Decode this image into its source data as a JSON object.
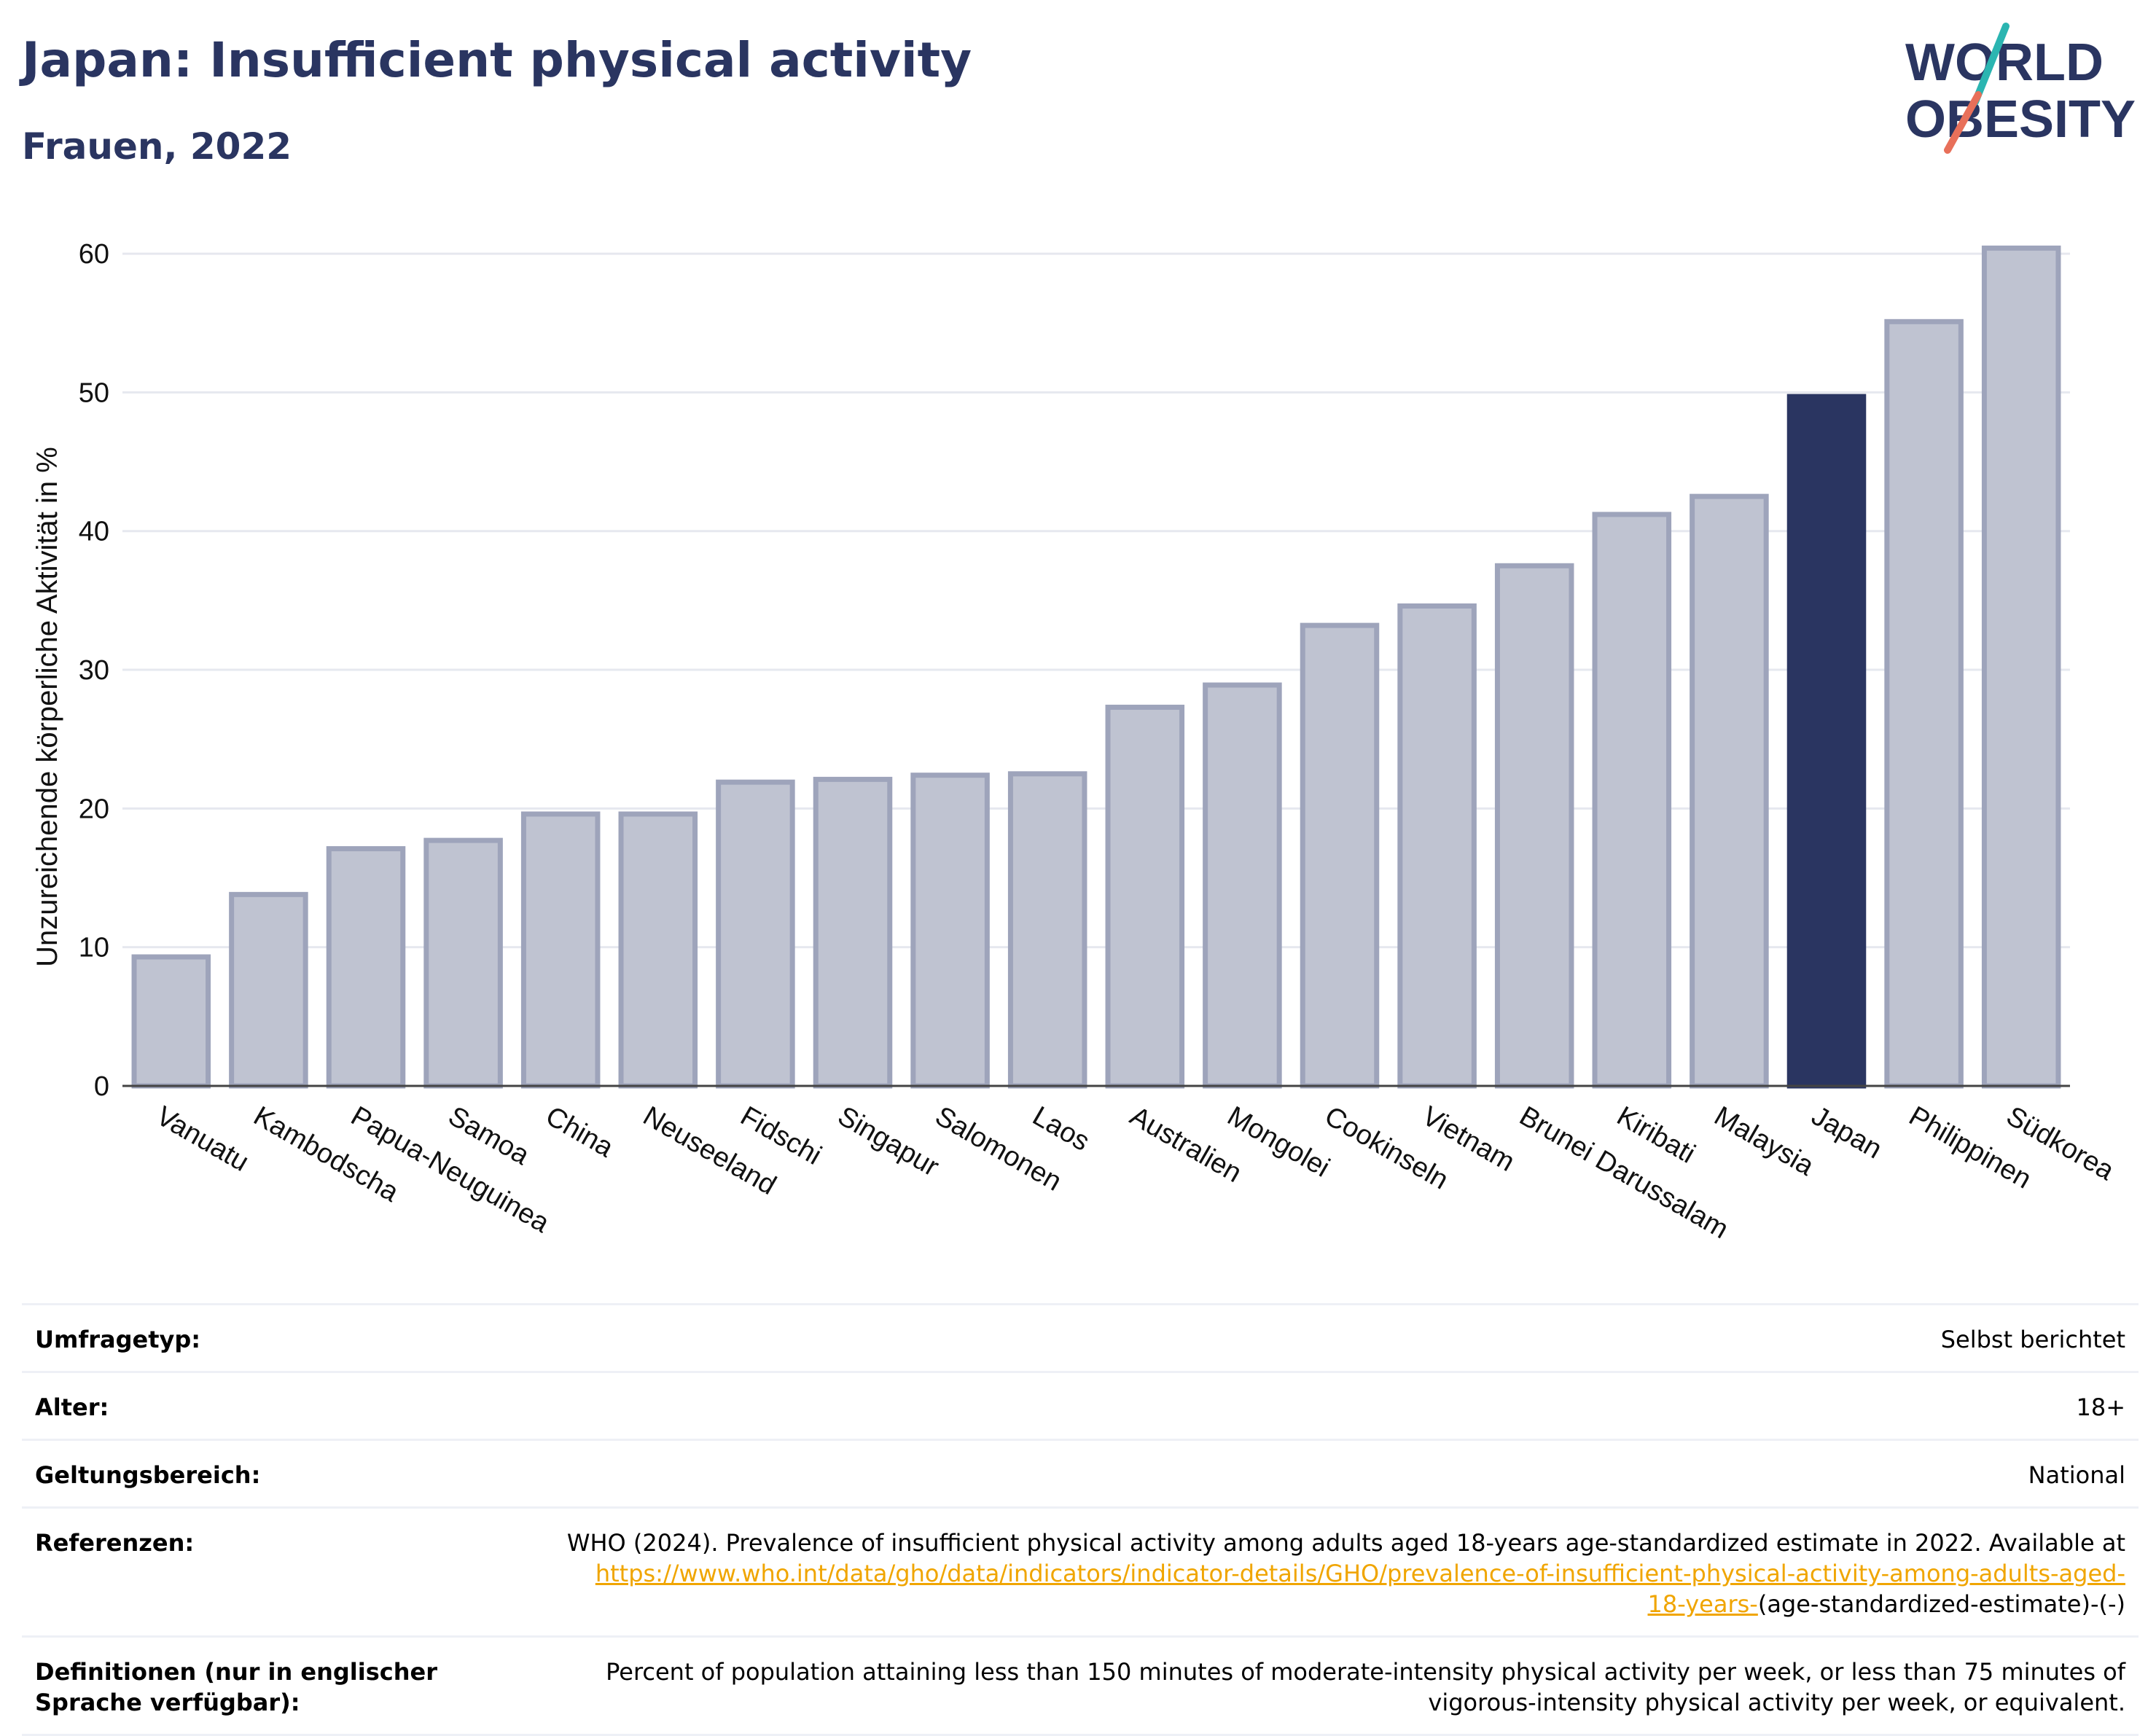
{
  "header": {
    "title": "Japan: Insufficient physical activity",
    "subtitle": "Frauen, 2022"
  },
  "logo": {
    "line1": "WORLD",
    "line2": "OBESITY",
    "brand_color": "#2a3561",
    "accent_teal": "#2bb5b1",
    "accent_coral": "#e8705a"
  },
  "chart_data": {
    "type": "bar",
    "ylabel": "Unzureichende körperliche Aktivität in %",
    "xlabel": "",
    "ylim": [
      0,
      62
    ],
    "yticks": [
      0,
      10,
      20,
      30,
      40,
      50,
      60
    ],
    "grid": true,
    "categories": [
      "Vanuatu",
      "Kambodscha",
      "Papua-Neuguinea",
      "Samoa",
      "China",
      "Neuseeland",
      "Fidschi",
      "Singapur",
      "Salomonen",
      "Laos",
      "Australien",
      "Mongolei",
      "Cookinseln",
      "Vietnam",
      "Brunei Darussalam",
      "Kiribati",
      "Malaysia",
      "Japan",
      "Philippinen",
      "Südkorea"
    ],
    "values": [
      9.3,
      13.8,
      17.1,
      17.7,
      19.6,
      19.6,
      21.9,
      22.1,
      22.4,
      22.5,
      27.3,
      28.9,
      33.2,
      34.6,
      37.5,
      41.2,
      42.5,
      49.7,
      55.1,
      60.4
    ],
    "highlight": "Japan",
    "bar_color": "#bfc3d1",
    "bar_border_color": "#9ea4bb",
    "highlight_color": "#2a3561"
  },
  "info": {
    "rows": [
      {
        "label": "Umfragetyp:",
        "value": "Selbst berichtet"
      },
      {
        "label": "Alter:",
        "value": "18+"
      },
      {
        "label": "Geltungsbereich:",
        "value": "National"
      }
    ],
    "references": {
      "label": "Referenzen:",
      "text": "WHO (2024). Prevalence of insufficient physical activity among adults aged 18-years age-standardized estimate in 2022. Available at",
      "link_part1": "https://www.who.int/data/gho/data/indicators/indicator-details/GHO/prevalence-of-insufficient-physical-activity-among-adults-aged-",
      "link_part2": "18-years-",
      "suffix": "(age-standardized-estimate)-(-)"
    },
    "definitions": {
      "label": "Definitionen (nur in englischer Sprache verfügbar):",
      "text": "Percent of population attaining less than 150 minutes of moderate-intensity physical activity per week, or less than 75 minutes of vigorous-intensity physical activity per week, or equivalent."
    }
  }
}
